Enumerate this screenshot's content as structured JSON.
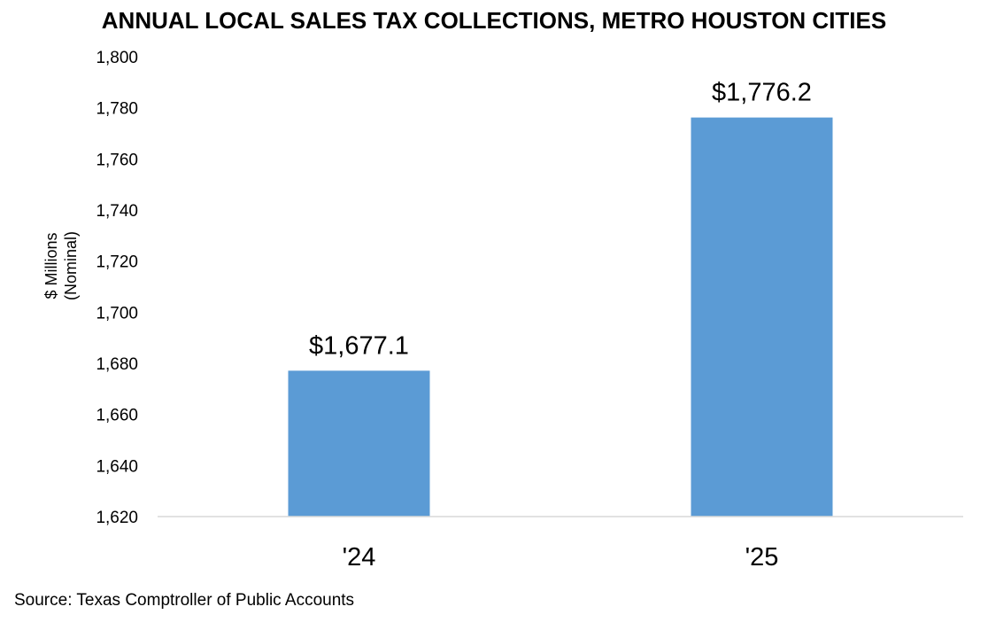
{
  "chart_data": {
    "type": "bar",
    "title": "ANNUAL LOCAL SALES TAX COLLECTIONS, METRO HOUSTON CITIES",
    "categories": [
      "'24",
      "'25"
    ],
    "values": [
      1677.1,
      1776.2
    ],
    "data_labels": [
      "$1,677.1",
      "$1,776.2"
    ],
    "xlabel": "",
    "ylabel": [
      "$ Millions",
      "(Nominal)"
    ],
    "ylim": [
      1620,
      1800
    ],
    "yticks": [
      1620,
      1640,
      1660,
      1680,
      1700,
      1720,
      1740,
      1760,
      1780,
      1800
    ],
    "ytick_labels": [
      "1,620",
      "1,640",
      "1,660",
      "1,680",
      "1,700",
      "1,720",
      "1,740",
      "1,760",
      "1,780",
      "1,800"
    ],
    "grid": false,
    "bar_color": "#5B9BD5"
  },
  "source": "Source: Texas Comptroller of Public Accounts"
}
